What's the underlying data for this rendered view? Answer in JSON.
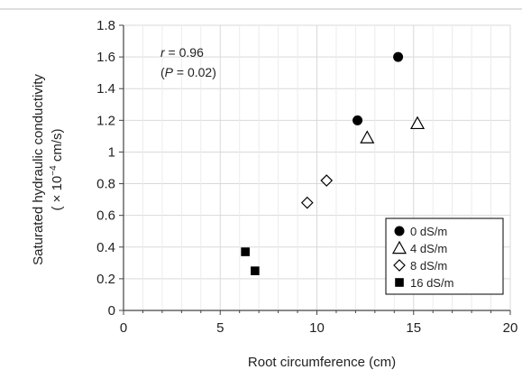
{
  "chart_data": {
    "type": "scatter",
    "xlabel": "Root circumference (cm)",
    "ylabel_line1": "Saturated hydraulic conductivity",
    "ylabel_line2_pre": "( × 10",
    "ylabel_sup": "−4",
    "ylabel_line2_post": " cm/s)",
    "xlim": [
      0,
      20
    ],
    "ylim": [
      0,
      1.8
    ],
    "x_ticks": [
      0,
      5,
      10,
      15,
      20
    ],
    "x_tick_labels": [
      "0",
      "5",
      "10",
      "15",
      "20"
    ],
    "y_ticks": [
      0,
      0.2,
      0.4,
      0.6,
      0.8,
      1,
      1.2,
      1.4,
      1.6,
      1.8
    ],
    "y_tick_labels": [
      "0",
      "0.2",
      "0.4",
      "0.6",
      "0.8",
      "1",
      "1.2",
      "1.4",
      "1.6",
      "1.8"
    ],
    "grid": true,
    "legend_position": "bottom-right",
    "annotation": {
      "r_symbol": "r",
      "r_value": " = 0.96",
      "p_open": "(",
      "p_symbol": "P",
      "p_value": " = 0.02)"
    },
    "series": [
      {
        "name": "0 dS/m",
        "marker": "circle-filled",
        "points": [
          [
            12.1,
            1.2
          ],
          [
            14.2,
            1.6
          ]
        ]
      },
      {
        "name": "4 dS/m",
        "marker": "triangle-open",
        "points": [
          [
            12.6,
            1.09
          ],
          [
            15.2,
            1.18
          ]
        ]
      },
      {
        "name": "8 dS/m",
        "marker": "diamond-open",
        "points": [
          [
            9.5,
            0.68
          ],
          [
            10.5,
            0.82
          ]
        ]
      },
      {
        "name": "16 dS/m",
        "marker": "square-filled",
        "points": [
          [
            6.3,
            0.37
          ],
          [
            6.8,
            0.25
          ]
        ]
      }
    ]
  },
  "colors": {
    "grid": "#d9d9d9",
    "axis": "#444444",
    "marker": "#000000",
    "text": "#222222",
    "top_rule": "#bfbfbf"
  }
}
